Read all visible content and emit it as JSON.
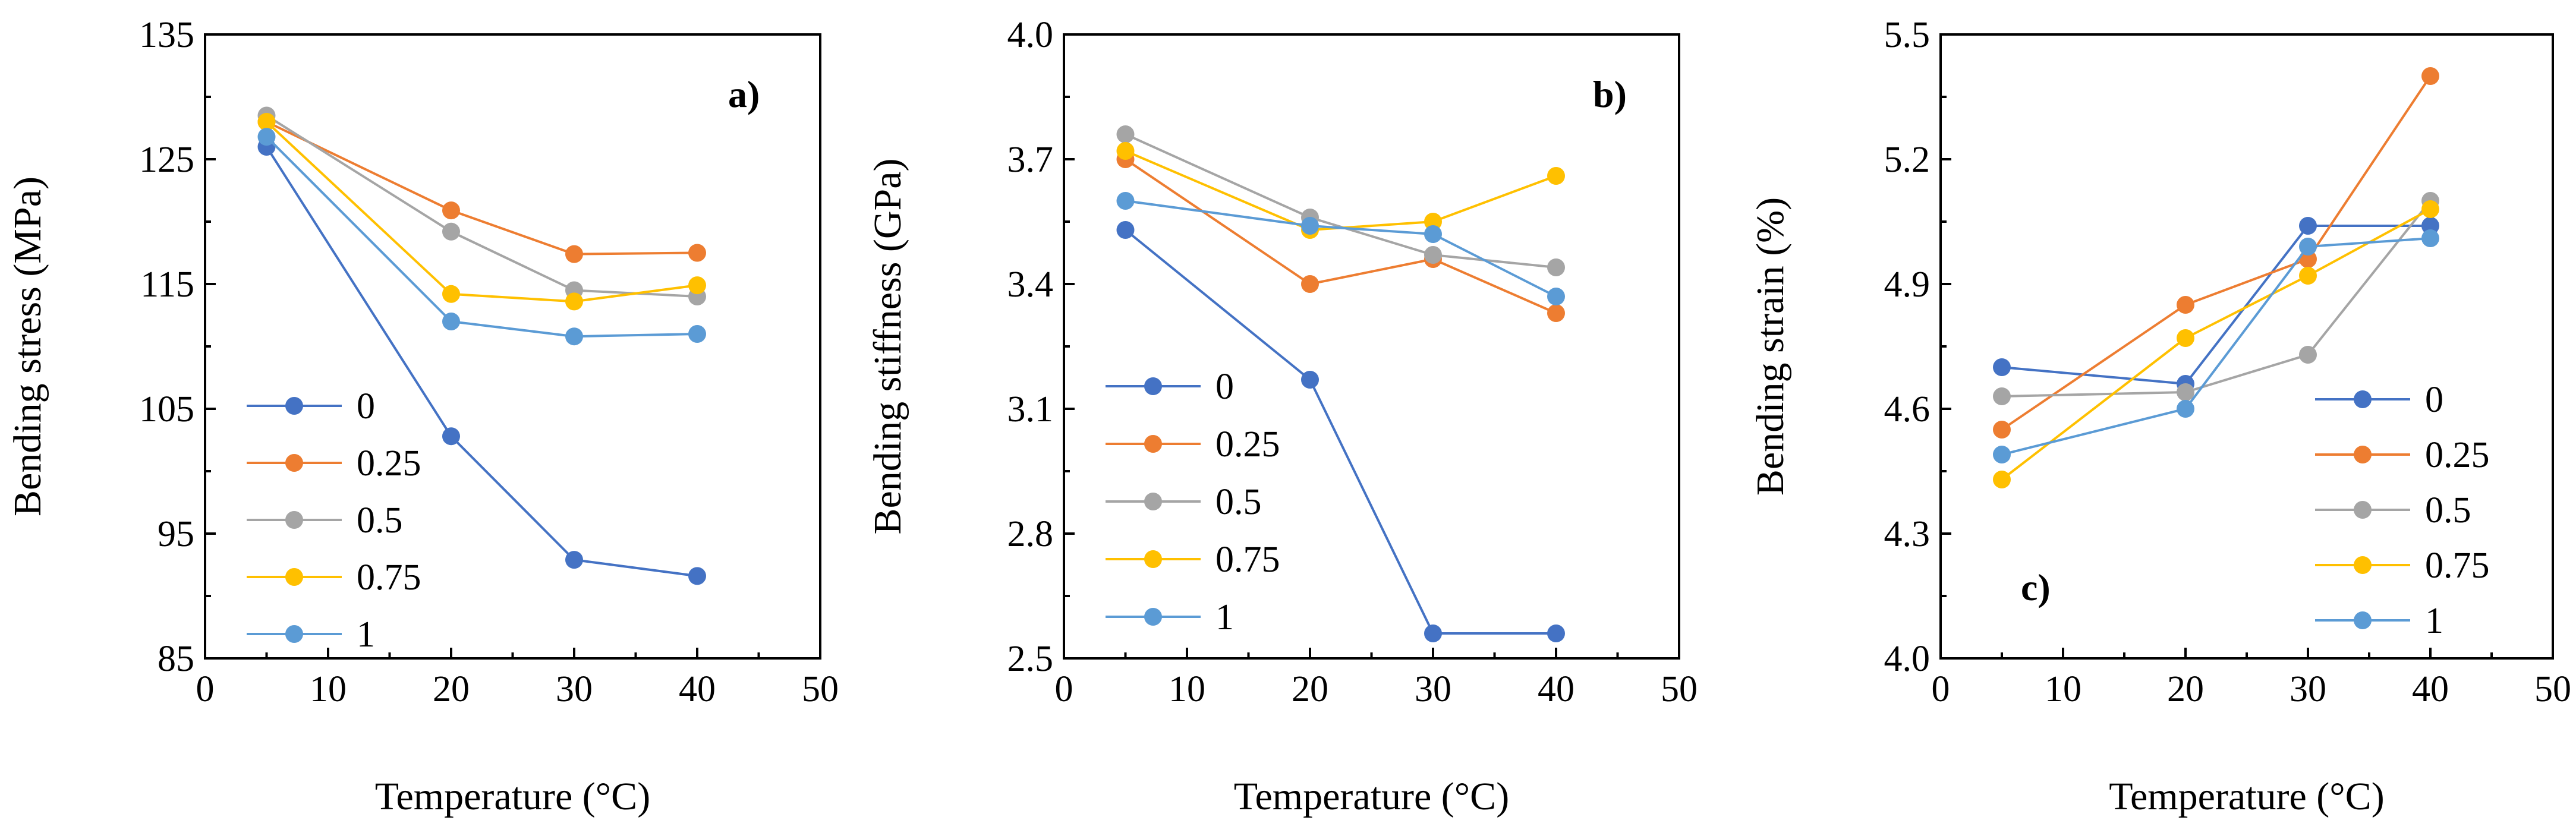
{
  "chart_data": [
    {
      "type": "line",
      "panel_label": "a)",
      "xlabel": "Temperature (°C)",
      "ylabel": "Bending stress (MPa)",
      "xlim": [
        0,
        50
      ],
      "ylim": [
        85,
        135
      ],
      "xticks": [
        0,
        10,
        20,
        30,
        40,
        50
      ],
      "yticks": [
        85,
        95,
        105,
        115,
        125,
        135
      ],
      "grid": false,
      "legend": "lower-left",
      "x": [
        5,
        20,
        30,
        40
      ],
      "series": [
        {
          "name": "0",
          "color": "#4472C4",
          "values": [
            126.0,
            102.8,
            92.9,
            91.6
          ]
        },
        {
          "name": "0.25",
          "color": "#ED7D31",
          "values": [
            128.0,
            120.9,
            117.4,
            117.5
          ]
        },
        {
          "name": "0.5",
          "color": "#A5A5A5",
          "values": [
            128.5,
            119.2,
            114.5,
            114.0
          ]
        },
        {
          "name": "0.75",
          "color": "#FFC000",
          "values": [
            128.0,
            114.2,
            113.6,
            114.9
          ]
        },
        {
          "name": "1",
          "color": "#5B9BD5",
          "values": [
            126.8,
            112.0,
            110.8,
            111.0
          ]
        }
      ]
    },
    {
      "type": "line",
      "panel_label": "b)",
      "xlabel": "Temperature (°C)",
      "ylabel": "Bending stiffness (GPa)",
      "xlim": [
        0,
        50
      ],
      "ylim": [
        2.5,
        4.0
      ],
      "xticks": [
        0,
        10,
        20,
        30,
        40,
        50
      ],
      "yticks": [
        "2.5",
        "2.8",
        "3.1",
        "3.4",
        "3.7",
        "4.0"
      ],
      "grid": false,
      "legend": "lower-left",
      "x": [
        5,
        20,
        30,
        40
      ],
      "series": [
        {
          "name": "0",
          "color": "#4472C4",
          "values": [
            3.53,
            3.17,
            2.56,
            2.56
          ]
        },
        {
          "name": "0.25",
          "color": "#ED7D31",
          "values": [
            3.7,
            3.4,
            3.46,
            3.33
          ]
        },
        {
          "name": "0.5",
          "color": "#A5A5A5",
          "values": [
            3.76,
            3.56,
            3.47,
            3.44
          ]
        },
        {
          "name": "0.75",
          "color": "#FFC000",
          "values": [
            3.72,
            3.53,
            3.55,
            3.66
          ]
        },
        {
          "name": "1",
          "color": "#5B9BD5",
          "values": [
            3.6,
            3.54,
            3.52,
            3.37
          ]
        }
      ]
    },
    {
      "type": "line",
      "panel_label": "c)",
      "xlabel": "Temperature (°C)",
      "ylabel": "Bending strain (%)",
      "xlim": [
        0,
        50
      ],
      "ylim": [
        4.0,
        5.5
      ],
      "xticks": [
        0,
        10,
        20,
        30,
        40,
        50
      ],
      "yticks": [
        "4.0",
        "4.3",
        "4.6",
        "4.9",
        "5.2",
        "5.5"
      ],
      "grid": false,
      "legend": "lower-right",
      "x": [
        5,
        20,
        30,
        40
      ],
      "series": [
        {
          "name": "0",
          "color": "#4472C4",
          "values": [
            4.7,
            4.66,
            5.04,
            5.04
          ]
        },
        {
          "name": "0.25",
          "color": "#ED7D31",
          "values": [
            4.55,
            4.85,
            4.96,
            5.4
          ]
        },
        {
          "name": "0.5",
          "color": "#A5A5A5",
          "values": [
            4.63,
            4.64,
            4.73,
            5.1
          ]
        },
        {
          "name": "0.75",
          "color": "#FFC000",
          "values": [
            4.43,
            4.77,
            4.92,
            5.08
          ]
        },
        {
          "name": "1",
          "color": "#5B9BD5",
          "values": [
            4.49,
            4.6,
            4.99,
            5.01
          ]
        }
      ]
    }
  ]
}
